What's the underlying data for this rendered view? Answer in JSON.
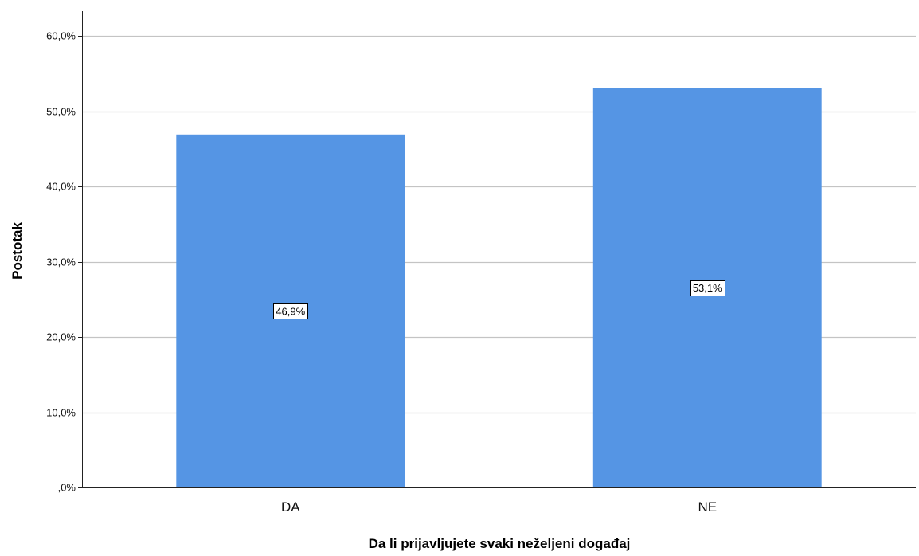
{
  "chart_data": {
    "type": "bar",
    "categories": [
      "DA",
      "NE"
    ],
    "values": [
      46.9,
      53.1
    ],
    "data_labels": [
      "46,9%",
      "53,1%"
    ],
    "yticks": [
      {
        "value": 0,
        "label": ",0%"
      },
      {
        "value": 10,
        "label": "10,0%"
      },
      {
        "value": 20,
        "label": "20,0%"
      },
      {
        "value": 30,
        "label": "30,0%"
      },
      {
        "value": 40,
        "label": "40,0%"
      },
      {
        "value": 50,
        "label": "50,0%"
      },
      {
        "value": 60,
        "label": "60,0%"
      }
    ],
    "ylim": [
      0,
      60.0
    ],
    "xlabel": "Da li prijavljujete svaki neželjeni događaj",
    "ylabel": "Postotak",
    "grid": true,
    "bar_color": "#5595e4"
  }
}
